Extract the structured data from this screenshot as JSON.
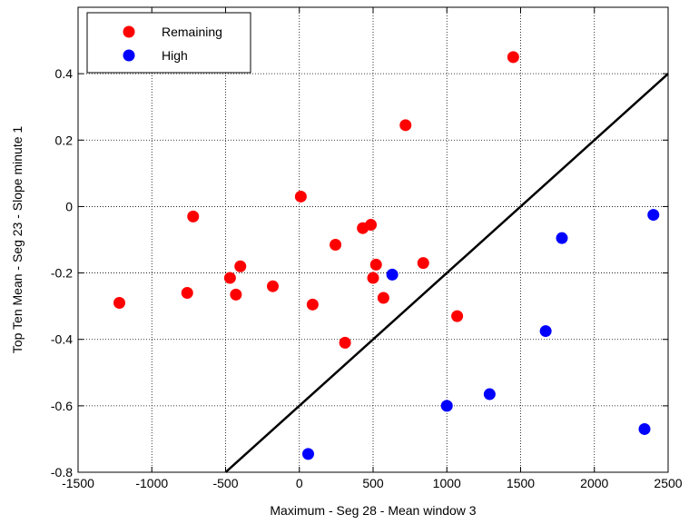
{
  "chart_data": {
    "type": "scatter",
    "xlabel": "Maximum - Seg 28 - Mean window 3",
    "ylabel": "Top Ten Mean - Seg 23 - Slope minute 1",
    "xlim": [
      -1500,
      2500
    ],
    "ylim": [
      -0.8,
      0.6
    ],
    "xticks": [
      -1500,
      -1000,
      -500,
      0,
      500,
      1000,
      1500,
      2000,
      2500
    ],
    "yticks": [
      -0.8,
      -0.6,
      -0.4,
      -0.2,
      0,
      0.2,
      0.4
    ],
    "grid": true,
    "legend": "upper left",
    "series": [
      {
        "name": "Remaining",
        "color": "#ff0000",
        "x": [
          -1220,
          -760,
          -720,
          -470,
          -430,
          -400,
          -180,
          10,
          90,
          245,
          310,
          430,
          485,
          500,
          520,
          570,
          720,
          840,
          1070,
          1450
        ],
        "values": [
          -0.29,
          -0.26,
          -0.03,
          -0.215,
          -0.265,
          -0.18,
          -0.24,
          0.03,
          -0.295,
          -0.115,
          -0.41,
          -0.065,
          -0.055,
          -0.215,
          -0.175,
          -0.275,
          0.245,
          -0.17,
          -0.33,
          0.45
        ]
      },
      {
        "name": "High",
        "color": "#0000ff",
        "x": [
          630,
          60,
          1000,
          1290,
          1670,
          1780,
          2400,
          2340
        ],
        "values": [
          -0.205,
          -0.745,
          -0.6,
          -0.565,
          -0.375,
          -0.095,
          -0.025,
          -0.67
        ]
      }
    ],
    "line": {
      "x": [
        -500,
        2500
      ],
      "values": [
        -0.8,
        0.4
      ],
      "color": "#000000"
    }
  }
}
